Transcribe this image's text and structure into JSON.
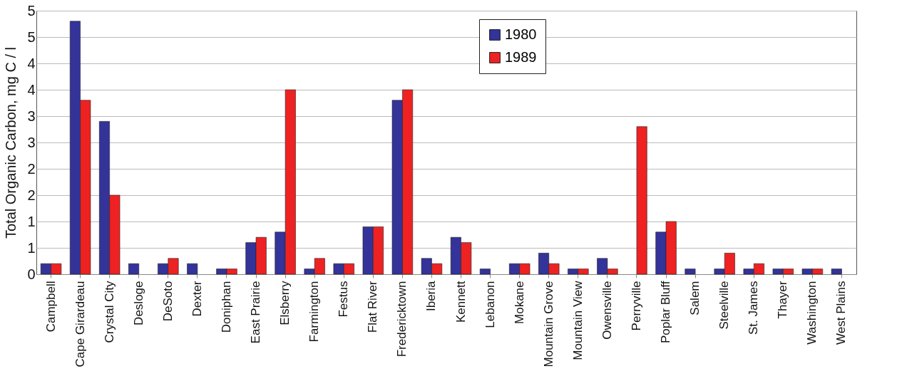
{
  "chart_data": {
    "type": "bar",
    "ylabel": "Total Organic Carbon,  mg C / l",
    "categories": [
      "Campbell",
      "Cape Girardeau",
      "Crystal City",
      "Desloge",
      "DeSoto",
      "Dexter",
      "Doniphan",
      "East Prairie",
      "Elsberry",
      "Farmington",
      "Festus",
      "Flat River",
      "Fredericktown",
      "Iberia",
      "Kennett",
      "Lebanon",
      "Mokane",
      "Mountain Grove",
      "Mountain View",
      "Owensville",
      "Perryville",
      "Poplar Bluff",
      "Salem",
      "Steelville",
      "St. James",
      "Thayer",
      "Washington",
      "West Plains"
    ],
    "series": [
      {
        "name": "1980",
        "color": "#33339a",
        "values": [
          0.2,
          4.8,
          2.9,
          0.2,
          0.2,
          0.2,
          0.1,
          0.6,
          0.8,
          0.1,
          0.2,
          0.9,
          3.3,
          0.3,
          0.7,
          0.1,
          0.2,
          0.4,
          0.1,
          0.3,
          null,
          0.8,
          0.1,
          0.1,
          0.1,
          0.1,
          0.1,
          0.1
        ]
      },
      {
        "name": "1989",
        "color": "#ee2222",
        "values": [
          0.2,
          3.3,
          1.5,
          null,
          0.3,
          null,
          0.1,
          0.7,
          3.5,
          0.3,
          0.2,
          0.9,
          3.5,
          0.2,
          0.6,
          null,
          0.2,
          0.2,
          0.1,
          0.1,
          2.8,
          1.0,
          null,
          0.4,
          0.2,
          0.1,
          0.1,
          null
        ]
      }
    ],
    "ylim": [
      0,
      5
    ],
    "yticks": [
      0,
      {
        "value": 0.5,
        "label": "1"
      },
      1,
      {
        "value": 1.5,
        "label": "2"
      },
      2,
      {
        "value": 2.5,
        "label": "3"
      },
      3,
      {
        "value": 3.5,
        "label": "4"
      },
      4,
      {
        "value": 4.5,
        "label": "5"
      },
      5
    ],
    "grid": "y",
    "legend": "top"
  }
}
